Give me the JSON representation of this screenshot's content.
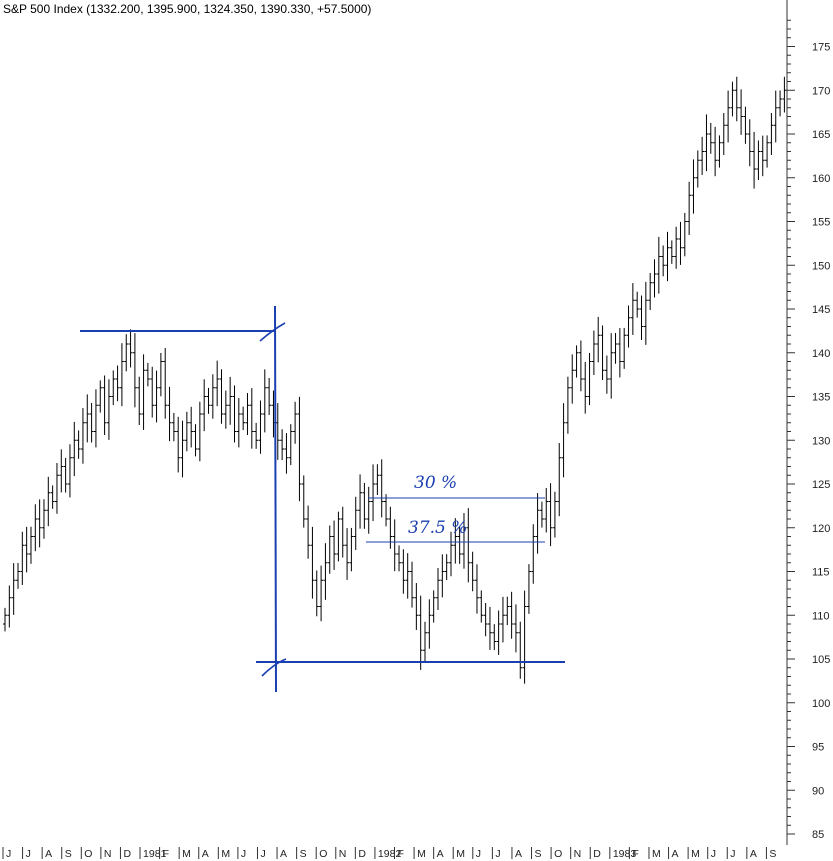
{
  "chart_data": {
    "type": "bar",
    "title": "S&P 500 Index (1332.200, 1395.900, 1324.350, 1390.330, +57.5000)",
    "ylim": [
      85,
      178
    ],
    "y_ticks": [
      85,
      90,
      95,
      100,
      105,
      110,
      115,
      120,
      125,
      130,
      135,
      140,
      145,
      150,
      155,
      160,
      165,
      170,
      175
    ],
    "x_ticks": [
      "J",
      "J",
      "A",
      "S",
      "O",
      "N",
      "D",
      "1981",
      "F",
      "M",
      "A",
      "M",
      "J",
      "J",
      "A",
      "S",
      "O",
      "N",
      "D",
      "1982",
      "F",
      "M",
      "A",
      "M",
      "J",
      "J",
      "A",
      "S",
      "O",
      "N",
      "D",
      "1983",
      "F",
      "M",
      "A",
      "M",
      "J",
      "J",
      "A",
      "S"
    ],
    "grid": false,
    "closes": [
      110,
      112,
      114,
      115,
      118,
      117,
      119,
      121,
      120,
      122,
      124,
      123,
      126,
      127,
      125,
      128,
      130,
      129,
      132,
      133,
      131,
      134,
      136,
      132,
      135,
      137,
      136,
      139,
      141,
      140,
      136,
      133,
      138,
      137,
      134,
      136,
      139,
      134,
      132,
      131,
      128,
      130,
      132,
      131,
      129,
      133,
      135,
      134,
      136,
      137,
      133,
      134,
      135,
      131,
      133,
      132,
      134,
      131,
      130,
      133,
      136,
      134,
      132,
      130,
      129,
      128,
      131,
      133,
      125,
      121,
      118,
      114,
      111,
      114,
      116,
      119,
      117,
      121,
      118,
      116,
      119,
      122,
      124,
      121,
      123,
      125,
      126,
      123,
      121,
      119,
      117,
      116,
      114,
      115,
      112,
      110,
      106,
      108,
      110,
      112,
      114,
      115,
      116,
      118,
      119,
      117,
      120,
      116,
      114,
      112,
      110,
      109,
      108,
      107,
      109,
      110,
      111,
      109,
      108,
      104,
      111,
      115,
      119,
      122,
      121,
      123,
      120,
      123,
      128,
      132,
      136,
      138,
      140,
      137,
      135,
      139,
      141,
      142,
      138,
      137,
      140,
      141,
      139,
      142,
      144,
      146,
      145,
      143,
      146,
      148,
      149,
      151,
      150,
      152,
      151,
      153,
      152,
      155,
      158,
      160,
      162,
      163,
      165,
      164,
      162,
      164,
      166,
      168,
      170,
      168,
      167,
      165,
      163,
      161,
      163,
      162,
      164,
      166,
      168,
      169,
      170
    ]
  },
  "annotations": {
    "label_30": "30 %",
    "label_375": "37.5 %"
  }
}
